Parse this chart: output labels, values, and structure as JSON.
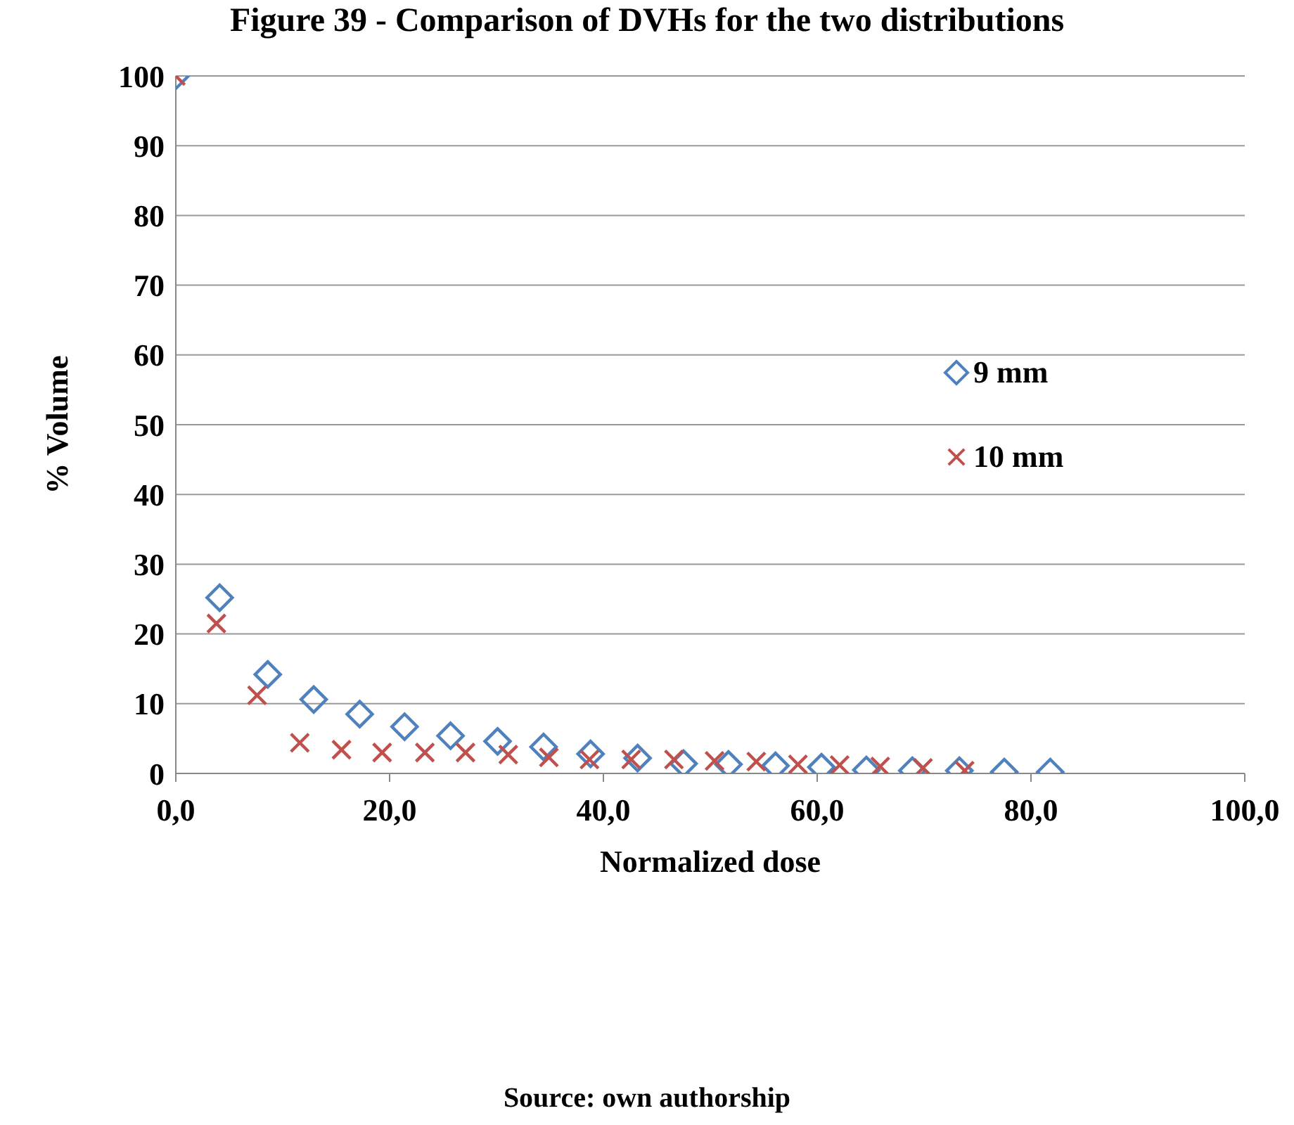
{
  "chart_data": {
    "type": "scatter",
    "title": "Figure 39 - Comparison of DVHs for the two distributions",
    "xlabel": "Normalized dose",
    "ylabel": "% Volume",
    "annotations": [
      "Source: own authorship"
    ],
    "xlim": [
      0,
      100
    ],
    "xticks": [
      {
        "value": 0,
        "label": "0,0"
      },
      {
        "value": 20,
        "label": "20,0"
      },
      {
        "value": 40,
        "label": "40,0"
      },
      {
        "value": 60,
        "label": "60,0"
      },
      {
        "value": 80,
        "label": "80,0"
      },
      {
        "value": 100,
        "label": "100,0"
      }
    ],
    "ylim": [
      0,
      100
    ],
    "yticks": [
      0,
      10,
      20,
      30,
      40,
      50,
      60,
      70,
      80,
      90,
      100
    ],
    "grid": "y",
    "legend": "right",
    "series": [
      {
        "name": "9 mm",
        "color": "#4f81bd",
        "marker": "diamond",
        "x": [
          0,
          4.1,
          8.6,
          12.9,
          17.2,
          21.4,
          25.7,
          30.1,
          34.4,
          38.8,
          43.2,
          47.5,
          51.7,
          56.1,
          60.4,
          64.6,
          68.9,
          73.3,
          77.5,
          81.8
        ],
        "values": [
          100,
          25.2,
          14.2,
          10.6,
          8.5,
          6.7,
          5.4,
          4.6,
          3.8,
          2.8,
          2.2,
          1.4,
          1.3,
          1.1,
          0.9,
          0.5,
          0.4,
          0.4,
          0.2,
          0.2
        ]
      },
      {
        "name": "10 mm",
        "color": "#c0504d",
        "marker": "cross",
        "x": [
          0,
          3.8,
          7.6,
          11.6,
          15.5,
          19.3,
          23.3,
          27.1,
          31.1,
          34.9,
          38.7,
          42.6,
          46.6,
          50.4,
          54.3,
          58.2,
          62.1,
          65.9,
          69.9,
          73.8
        ],
        "values": [
          100,
          21.5,
          11.2,
          4.4,
          3.4,
          3.0,
          3.0,
          3.0,
          2.7,
          2.3,
          2.0,
          2.0,
          2.0,
          1.8,
          1.7,
          1.3,
          1.2,
          1.0,
          0.8,
          0.4
        ]
      }
    ]
  }
}
